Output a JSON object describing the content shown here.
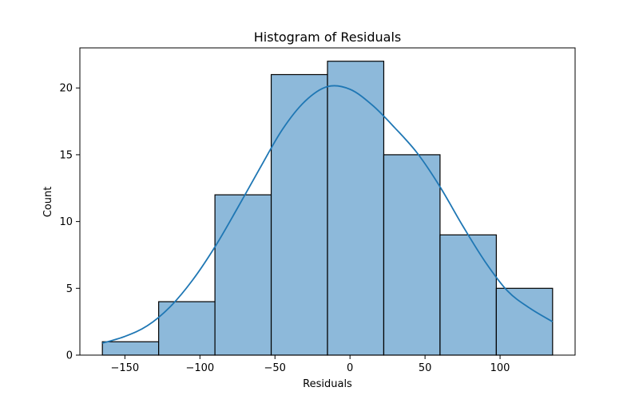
{
  "chart_data": {
    "type": "bar",
    "title": "Histogram of Residuals",
    "xlabel": "Residuals",
    "ylabel": "Count",
    "xlim": [
      -180,
      150
    ],
    "ylim": [
      0,
      23
    ],
    "x_ticks": [
      -150,
      -100,
      -50,
      0,
      50,
      100
    ],
    "x_tick_labels": [
      "−150",
      "−100",
      "−50",
      "0",
      "50",
      "100"
    ],
    "y_ticks": [
      0,
      5,
      10,
      15,
      20
    ],
    "y_tick_labels": [
      "0",
      "5",
      "10",
      "15",
      "20"
    ],
    "bins": [
      {
        "start": -165.0,
        "end": -127.5,
        "count": 1
      },
      {
        "start": -127.5,
        "end": -90.0,
        "count": 4
      },
      {
        "start": -90.0,
        "end": -52.5,
        "count": 12
      },
      {
        "start": -52.5,
        "end": -15.0,
        "count": 21
      },
      {
        "start": -15.0,
        "end": 22.5,
        "count": 22
      },
      {
        "start": 22.5,
        "end": 60.0,
        "count": 15
      },
      {
        "start": 60.0,
        "end": 97.5,
        "count": 9
      },
      {
        "start": 97.5,
        "end": 135.0,
        "count": 5
      }
    ],
    "kde_curve": {
      "x": [
        -165,
        -150,
        -135,
        -120,
        -105,
        -90,
        -75,
        -60,
        -45,
        -30,
        -15,
        0,
        15,
        30,
        45,
        60,
        75,
        90,
        105,
        120,
        135
      ],
      "y": [
        0.9,
        1.4,
        2.2,
        3.6,
        5.6,
        8.1,
        11.0,
        14.0,
        16.9,
        19.0,
        20.1,
        19.9,
        18.7,
        17.0,
        15.1,
        12.6,
        9.7,
        7.0,
        4.8,
        3.5,
        2.5
      ]
    },
    "grid": false,
    "colors": {
      "bar_fill": "#8db9da",
      "bar_edge": "#000000",
      "kde_line": "#1f77b4"
    }
  }
}
